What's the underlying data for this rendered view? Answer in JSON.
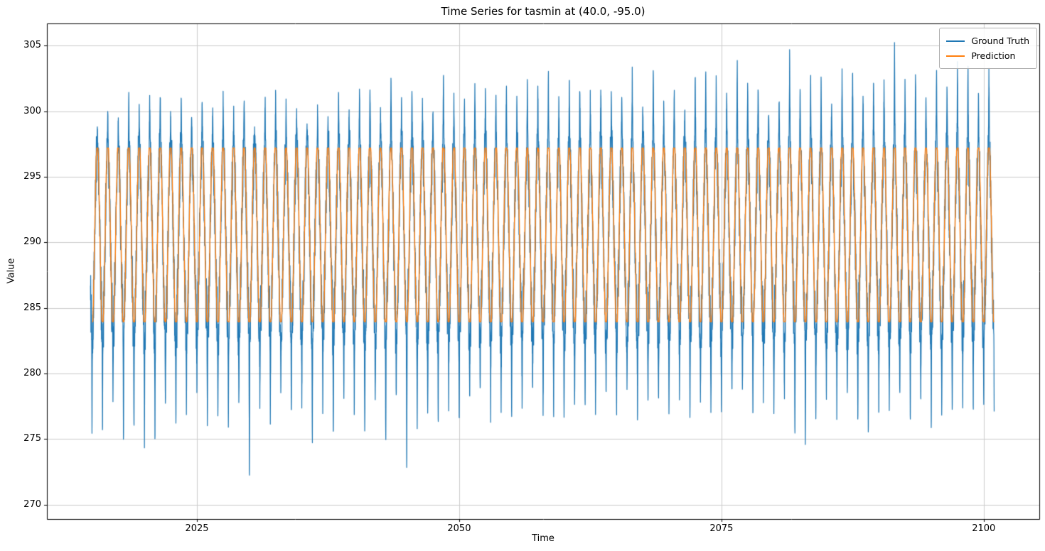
{
  "chart_data": {
    "type": "line",
    "title": "Time Series for tasmin at (40.0, -95.0)",
    "xlabel": "Time",
    "ylabel": "Value",
    "xlim": [
      2010.7,
      2105.3
    ],
    "ylim": [
      268.9,
      306.7
    ],
    "xticks": [
      2025,
      2050,
      2075,
      2100
    ],
    "yticks": [
      270,
      275,
      280,
      285,
      290,
      295,
      300,
      305
    ],
    "grid": true,
    "grid_color": "#cccccc",
    "spine_color": "#000000",
    "background": "#ffffff",
    "legend_position": "upper right",
    "seed": 42,
    "samples_per_year_ground_truth": 96,
    "samples_per_year_prediction": 48,
    "year_start": 2015,
    "t_start": 2014.85,
    "t_end": 2101.0,
    "series": [
      {
        "name": "Ground Truth",
        "color": "#1f77b4",
        "role": "ground-truth",
        "line_width": 1.2,
        "seasonal": {
          "mid": 290.3,
          "amplitude": 6.9,
          "period_years": 1
        },
        "noise_amplitude": 2.2,
        "summer_peaks": [
          299.1,
          300.6,
          299.2,
          301.5,
          300.3,
          301.2,
          301.9,
          300.1,
          301.3,
          299.6,
          301.4,
          300.0,
          301.4,
          300.1,
          301.7,
          298.7,
          301.0,
          301.6,
          300.5,
          300.3,
          299.4,
          300.2,
          299.5,
          302.3,
          300.2,
          302.1,
          302.0,
          300.8,
          302.6,
          300.9,
          301.7,
          301.0,
          300.1,
          303.4,
          301.1,
          300.8,
          301.8,
          302.0,
          301.5,
          302.3,
          300.9,
          302.4,
          302.2,
          303.3,
          301.0,
          302.3,
          302.5,
          301.2,
          302.1,
          301.1,
          302.0,
          303.3,
          300.8,
          303.7,
          300.3,
          302.2,
          300.5,
          303.0,
          303.2,
          302.5,
          301.6,
          304.0,
          302.9,
          302.8,
          300.6,
          301.5,
          304.8,
          301.9,
          302.9,
          302.7,
          301.2,
          303.2,
          303.8,
          301.5,
          302.4,
          303.0,
          305.2,
          302.6,
          303.5,
          301.2,
          303.3,
          302.4,
          303.9,
          303.5,
          301.5,
          303.4
        ],
        "winter_troughs": [
          275.3,
          275.0,
          277.2,
          273.4,
          274.6,
          273.9,
          274.2,
          276.1,
          274.8,
          276.3,
          278.1,
          274.7,
          276.2,
          274.9,
          276.5,
          270.8,
          277.5,
          275.9,
          277.8,
          276.0,
          277.6,
          273.9,
          276.7,
          273.5,
          277.9,
          276.4,
          273.8,
          277.0,
          273.5,
          277.4,
          271.3,
          275.6,
          276.0,
          275.9,
          277.3,
          275.8,
          276.8,
          277.6,
          276.2,
          277.0,
          275.7,
          276.1,
          277.9,
          276.4,
          276.0,
          275.8,
          275.9,
          277.2,
          276.6,
          277.4,
          276.1,
          277.8,
          276.3,
          277.0,
          276.5,
          276.6,
          277.1,
          276.4,
          277.5,
          276.0,
          275.8,
          277.7,
          278.0,
          276.2,
          277.3,
          276.8,
          277.9,
          274.3,
          273.3,
          276.5,
          277.6,
          276.1,
          277.2,
          274.6,
          274.7,
          276.9,
          276.3,
          277.8,
          276.0,
          277.4,
          275.9,
          275.8,
          276.6,
          277.0,
          276.4,
          277.2
        ]
      },
      {
        "name": "Prediction",
        "color": "#ff7f0e",
        "role": "prediction",
        "line_width": 1.4,
        "seasonal": {
          "mid": 290.55,
          "amplitude": 7.2,
          "period_years": 1
        },
        "noise_amplitude": 0.35,
        "clip_min": 283.95,
        "clip_max": 297.2
      }
    ]
  }
}
